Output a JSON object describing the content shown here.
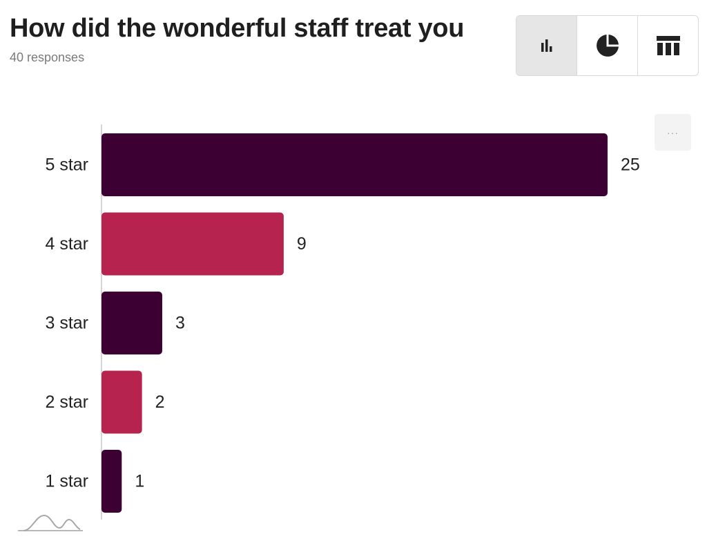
{
  "header": {
    "title": "How did the wonderful staff treat you",
    "subtitle": "40 responses"
  },
  "toolbar": {
    "buttons": [
      {
        "name": "bar-chart",
        "icon": "bar-chart-icon",
        "active": true
      },
      {
        "name": "pie-chart",
        "icon": "pie-chart-icon",
        "active": false
      },
      {
        "name": "table",
        "icon": "table-icon",
        "active": false
      }
    ]
  },
  "more_button": {
    "label": "···"
  },
  "colors": {
    "dark": "#3d0033",
    "pink": "#b5234e",
    "axis": "#d6d6d6"
  },
  "chart_data": {
    "type": "bar",
    "orientation": "horizontal",
    "title": "How did the wonderful staff treat you",
    "categories": [
      "5 star",
      "4 star",
      "3 star",
      "2 star",
      "1 star"
    ],
    "values": [
      25,
      9,
      3,
      2,
      1
    ],
    "bar_colors": [
      "#3d0033",
      "#b5234e",
      "#3d0033",
      "#b5234e",
      "#3d0033"
    ],
    "xlim": [
      0,
      25
    ],
    "grid": false,
    "data_labels": true
  }
}
